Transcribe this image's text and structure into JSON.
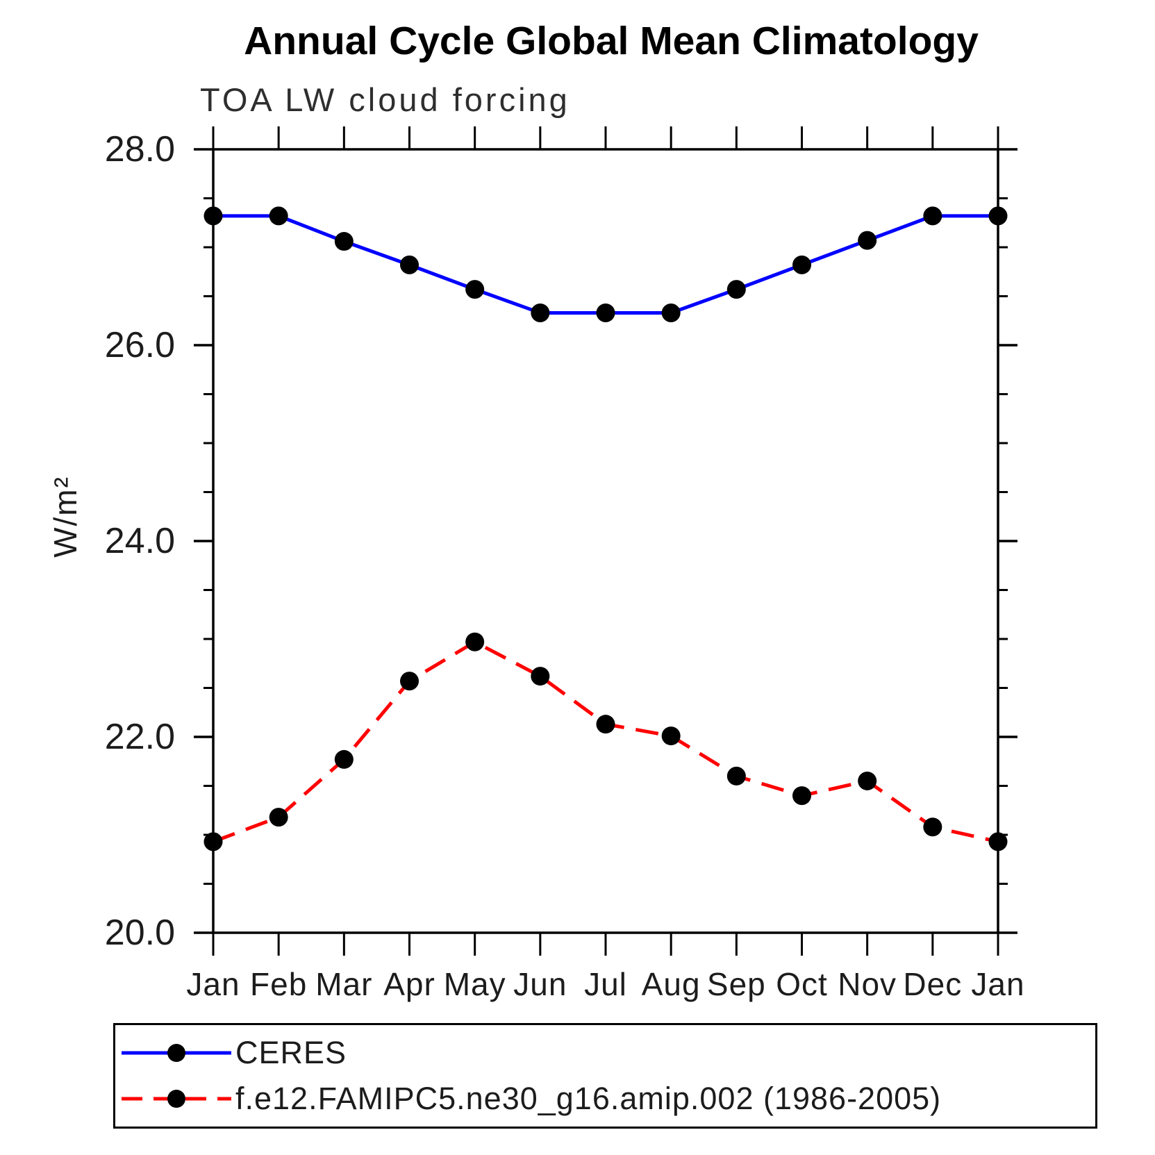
{
  "chart_data": {
    "type": "line",
    "title": "Annual Cycle Global Mean Climatology",
    "subtitle": "TOA LW cloud forcing",
    "ylabel": "W/m²",
    "categories": [
      "Jan",
      "Feb",
      "Mar",
      "Apr",
      "May",
      "Jun",
      "Jul",
      "Aug",
      "Sep",
      "Oct",
      "Nov",
      "Dec",
      "Jan"
    ],
    "ylim": [
      20.0,
      28.0
    ],
    "ytick_major": [
      20.0,
      22.0,
      24.0,
      26.0,
      28.0
    ],
    "ytick_major_labels": [
      "20.0",
      "22.0",
      "24.0",
      "26.0",
      "28.0"
    ],
    "ytick_minor_step": 0.5,
    "grid": false,
    "legend_position": "bottom",
    "series": [
      {
        "name": "CERES",
        "color": "#0000ff",
        "style": "solid",
        "marker": "circle",
        "marker_color": "#000000",
        "values": [
          27.32,
          27.32,
          27.06,
          26.82,
          26.57,
          26.33,
          26.33,
          26.33,
          26.57,
          26.82,
          27.07,
          27.32,
          27.32
        ]
      },
      {
        "name": "f.e12.FAMIPC5.ne30_g16.amip.002 (1986-2005)",
        "color": "#ff0000",
        "style": "dashed",
        "marker": "circle",
        "marker_color": "#000000",
        "values": [
          20.93,
          21.18,
          21.77,
          22.57,
          22.97,
          22.62,
          22.13,
          22.01,
          21.6,
          21.4,
          21.55,
          21.08,
          20.93
        ]
      }
    ]
  }
}
